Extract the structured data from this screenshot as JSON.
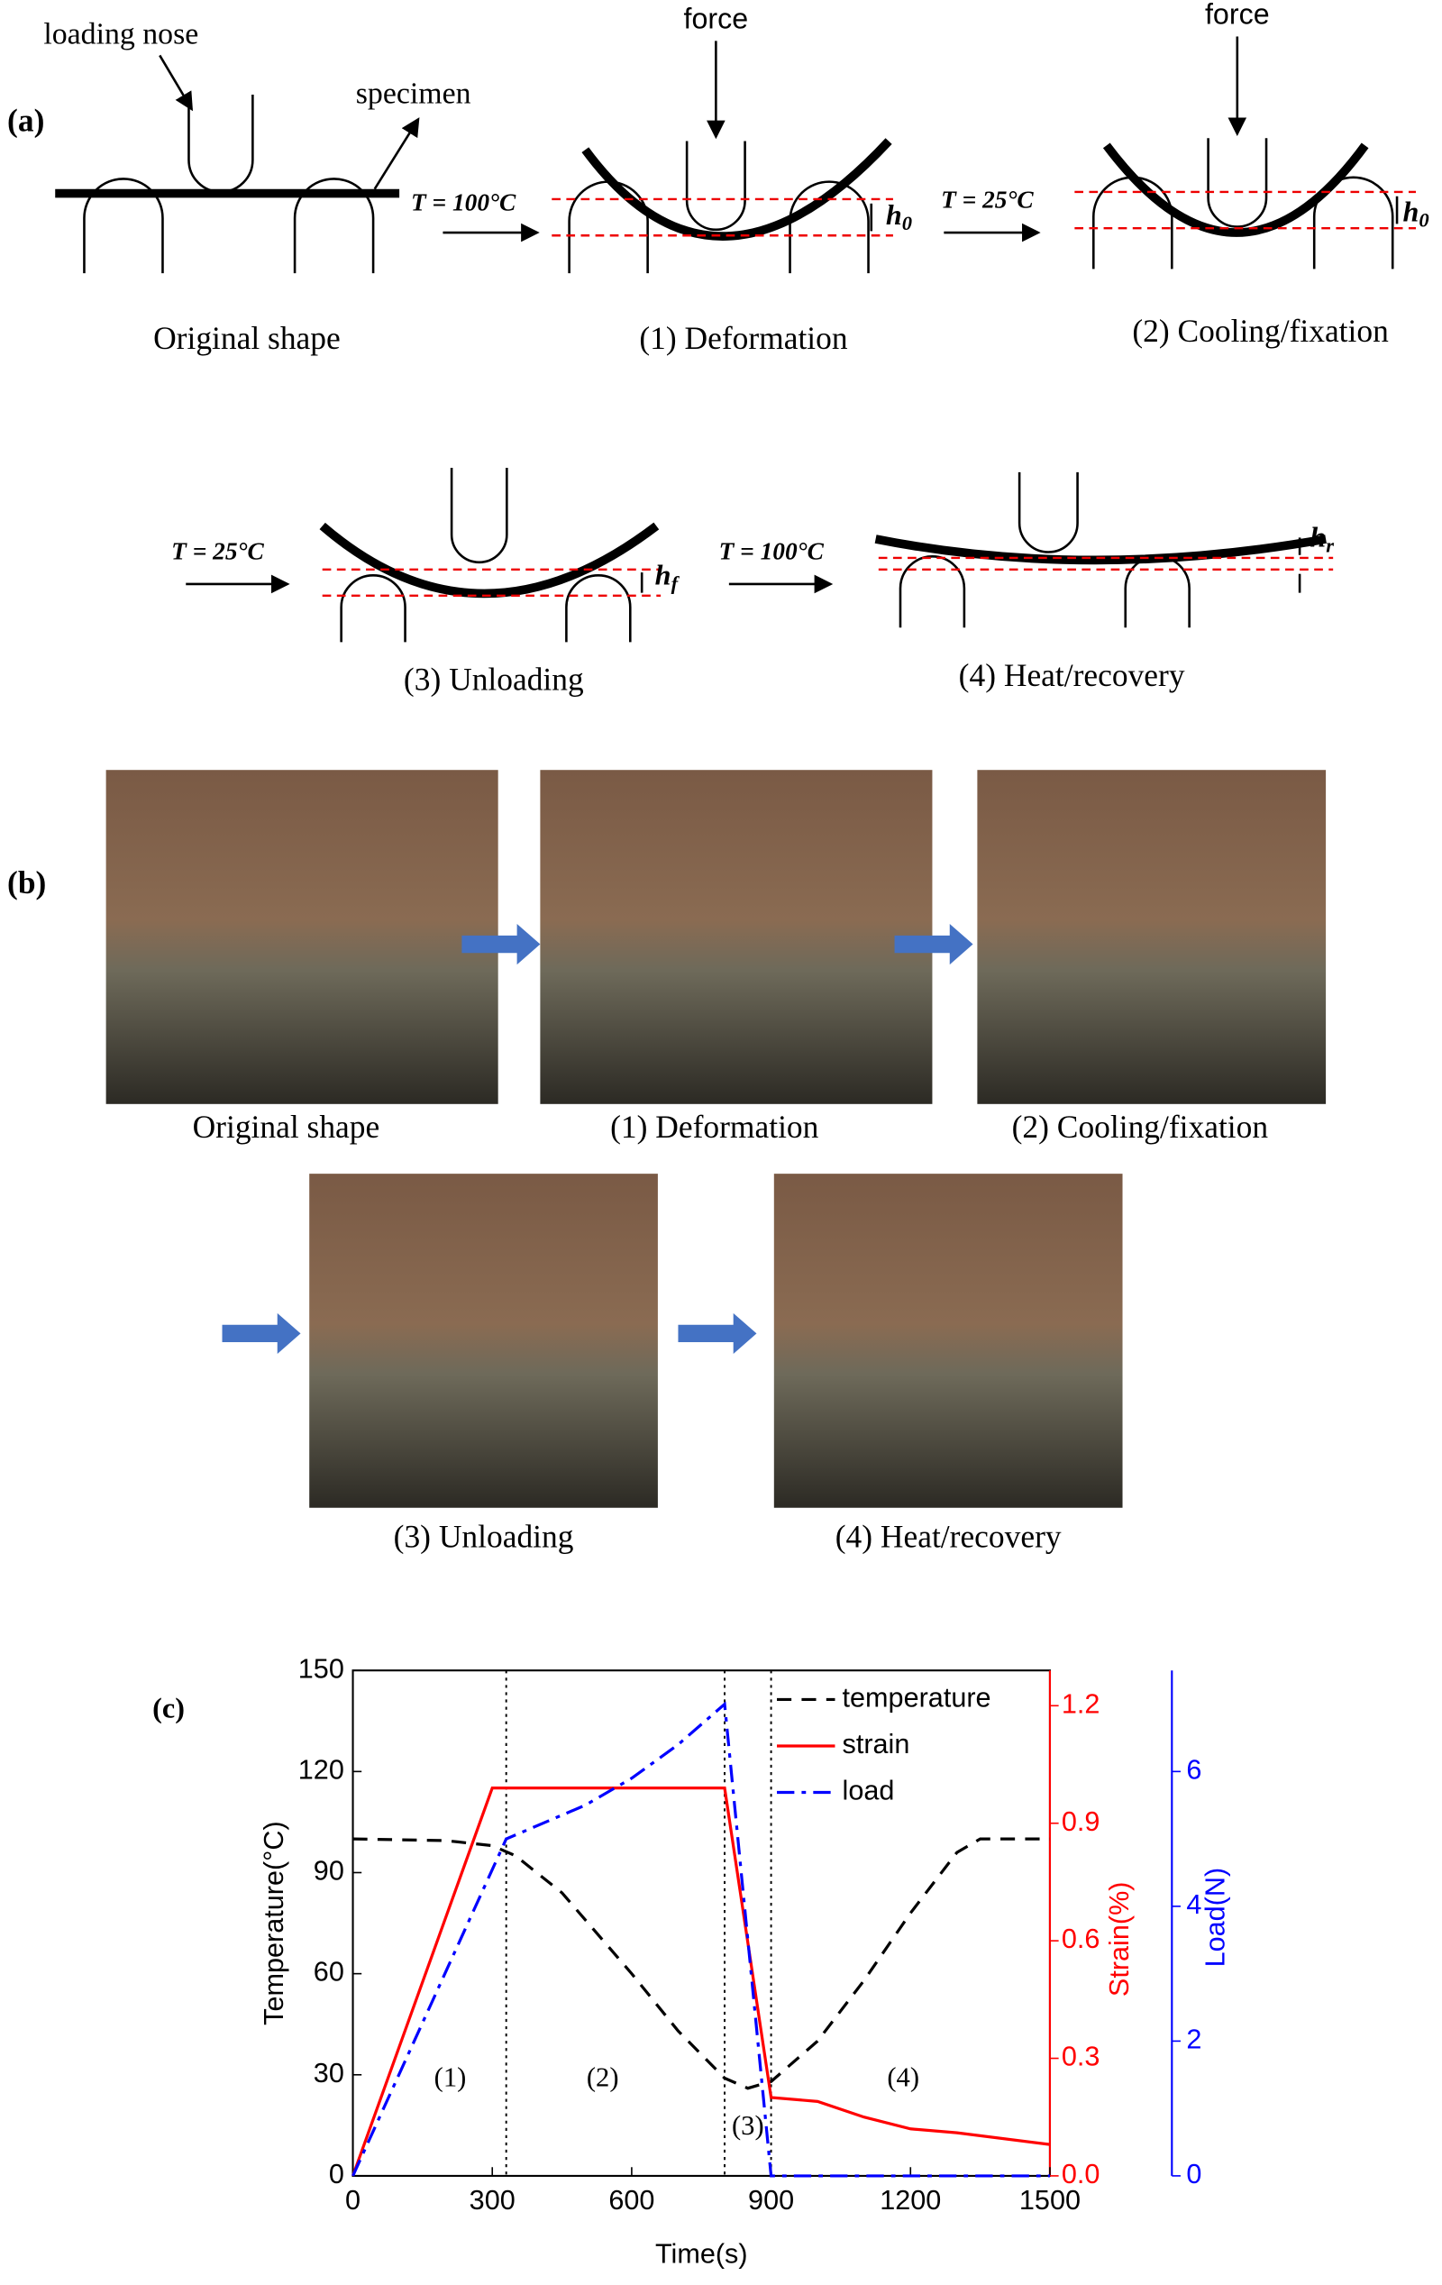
{
  "panel_labels": [
    "(a)",
    "(b)",
    "(c)"
  ],
  "schematic": {
    "loading_nose": "loading nose",
    "specimen": "specimen",
    "force_labels": [
      "force",
      "force"
    ],
    "temperatures": [
      "T = 100°C",
      "T = 25°C",
      "T = 25°C",
      "T = 100°C"
    ],
    "heights": [
      {
        "symbol": "h",
        "sub": "0"
      },
      {
        "symbol": "h",
        "sub": "0"
      },
      {
        "symbol": "h",
        "sub": "f"
      },
      {
        "symbol": "h",
        "sub": "r"
      }
    ],
    "captions": [
      "Original shape",
      "(1) Deformation",
      "(2) Cooling/fixation",
      "(3) Unloading",
      "(4) Heat/recovery"
    ]
  },
  "photos": {
    "captions": [
      "Original shape",
      "(1) Deformation",
      "(2) Cooling/fixation",
      "(3) Unloading",
      "(4) Heat/recovery"
    ]
  },
  "chart_data": {
    "type": "line",
    "x_label": "Time(s)",
    "y_label": "Temperature(°C)",
    "y2_label": "Strain(%)",
    "y3_label": "Load(N)",
    "xlim": [
      0,
      1500
    ],
    "xticks": [
      0,
      300,
      600,
      900,
      1200,
      1500
    ],
    "ylim": [
      0,
      150
    ],
    "yticks": [
      0,
      30,
      60,
      90,
      120,
      150
    ],
    "y2lim": [
      0,
      1.29
    ],
    "y2ticks": [
      {
        "value": 0,
        "label": "0.0"
      },
      0.3,
      0.6,
      0.9,
      1.2
    ],
    "y3lim": [
      0,
      7.5
    ],
    "y3ticks": [
      0,
      2,
      4,
      6
    ],
    "y2color": "#ff0000",
    "y3color": "#0000ff",
    "phase_lines": [
      330,
      800,
      900
    ],
    "phase_labels": [
      "(1)",
      "(2)",
      "(3)",
      "(4)"
    ],
    "series": [
      {
        "name": "temperature",
        "color": "#000000",
        "dash": "dashed",
        "axis": "y",
        "x": [
          0,
          200,
          300,
          350,
          450,
          600,
          700,
          800,
          850,
          900,
          1000,
          1100,
          1200,
          1300,
          1350,
          1500
        ],
        "values": [
          100,
          99.5,
          98,
          95,
          84,
          60,
          43,
          29,
          26,
          28,
          40,
          58,
          78,
          96,
          100,
          100
        ]
      },
      {
        "name": "strain",
        "color": "#ff0000",
        "dash": "solid",
        "axis": "y2",
        "x": [
          0,
          300,
          800,
          900,
          1000,
          1100,
          1200,
          1300,
          1500
        ],
        "values": [
          0,
          0.99,
          0.99,
          0.2,
          0.19,
          0.15,
          0.12,
          0.11,
          0.08
        ]
      },
      {
        "name": "load",
        "color": "#0000ff",
        "dash": "dashdot",
        "axis": "y3",
        "x": [
          0,
          330,
          500,
          600,
          700,
          800,
          900,
          1500
        ],
        "values": [
          0,
          5,
          5.5,
          5.9,
          6.4,
          7,
          0,
          0
        ]
      }
    ]
  }
}
